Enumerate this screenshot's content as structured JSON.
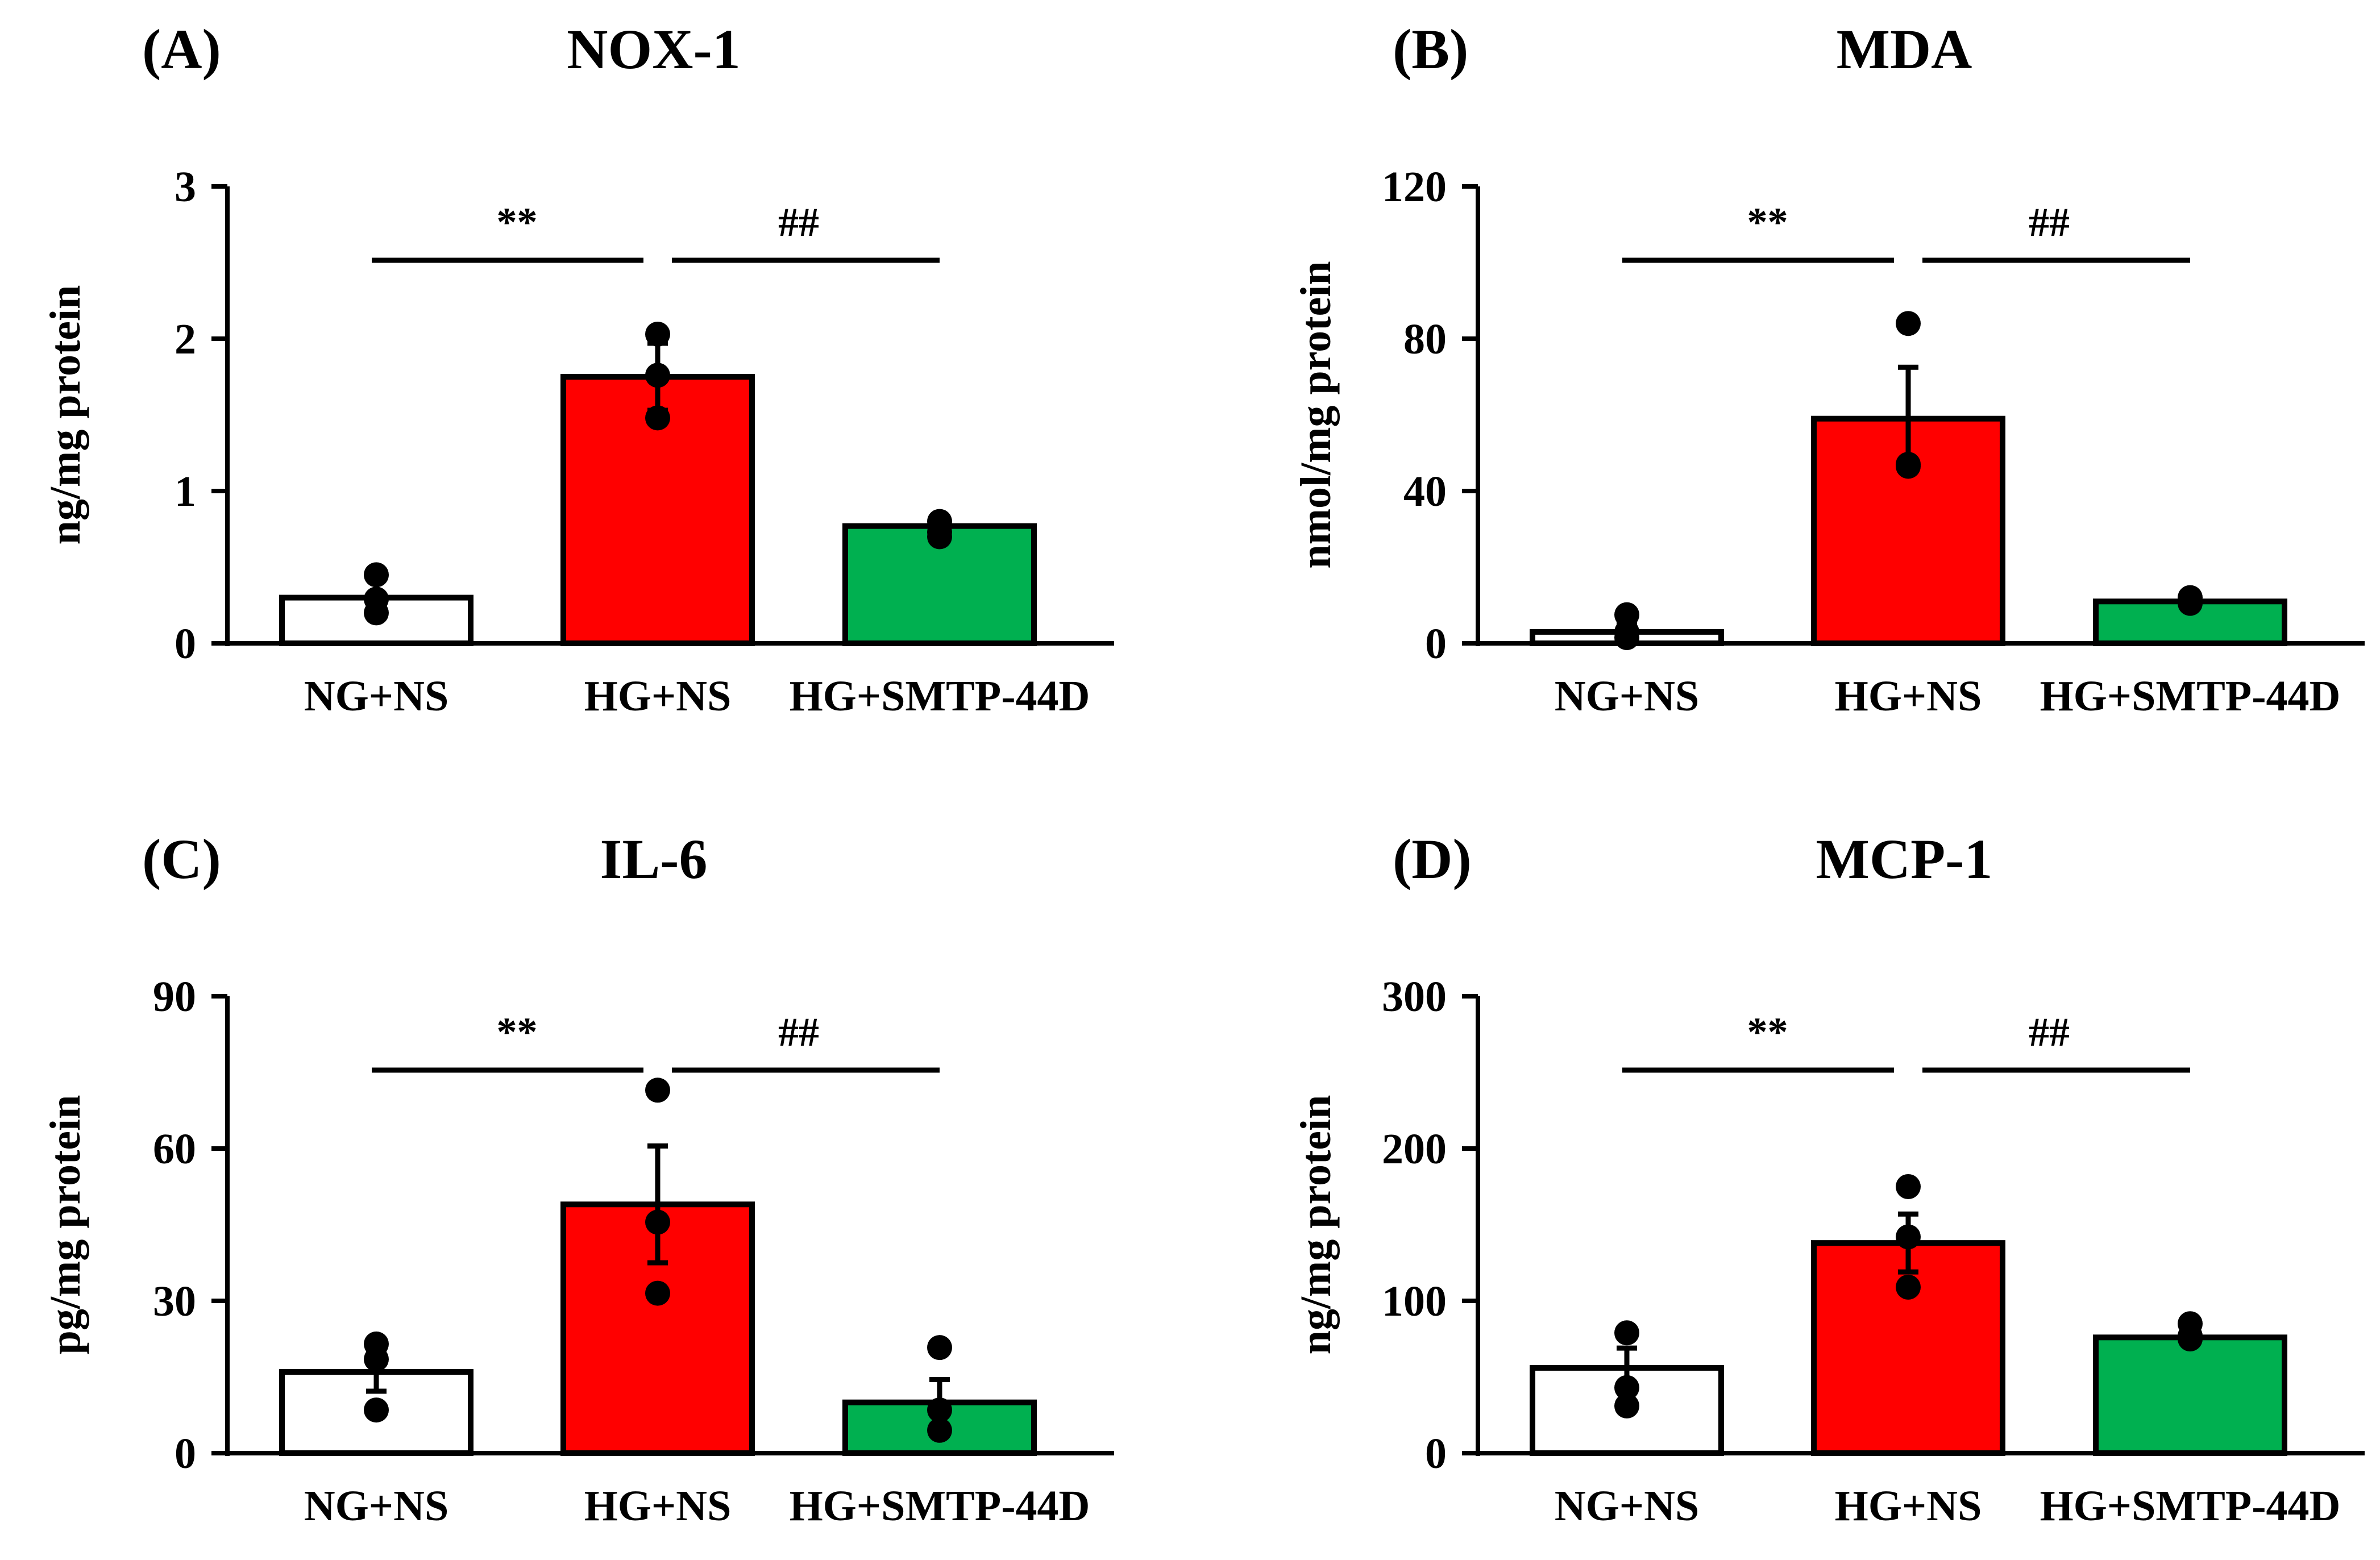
{
  "figure": {
    "description_colors": {
      "axis": "#000000",
      "NG+NS": "#ffffff",
      "HG+NS": "#ff0000",
      "HG+SMTP-44D": "#00b050"
    }
  },
  "chart_data": [
    {
      "panel_label": "(A)",
      "title": "NOX-1",
      "type": "bar",
      "ylabel": "ng/mg protein",
      "xlabel": "",
      "ylim": [
        0,
        3
      ],
      "yticks": [
        "0",
        "1",
        "2",
        "3"
      ],
      "categories": [
        "NG+NS",
        "HG+NS",
        "HG+SMTP-44D"
      ],
      "values": [
        0.3,
        1.75,
        0.77
      ],
      "errors": [
        0.0,
        0.22,
        0.0
      ],
      "points": [
        [
          0.45,
          0.29,
          0.2
        ],
        [
          2.03,
          1.76,
          1.48
        ],
        [
          0.8,
          0.73,
          0.7
        ]
      ],
      "significance": [
        {
          "from": 0,
          "to": 1,
          "label": "**"
        },
        {
          "from": 1,
          "to": 2,
          "label": "##"
        }
      ]
    },
    {
      "panel_label": "(B)",
      "title": "MDA",
      "type": "bar",
      "ylabel": "nmol/mg protein",
      "xlabel": "",
      "ylim": [
        0,
        120
      ],
      "yticks": [
        "0",
        "40",
        "80",
        "120"
      ],
      "categories": [
        "NG+NS",
        "HG+NS",
        "HG+SMTP-44D"
      ],
      "values": [
        3,
        59,
        11
      ],
      "errors": [
        2.5,
        13.5,
        0.5
      ],
      "points": [
        [
          7.5,
          3,
          1.5
        ],
        [
          84,
          47,
          46.5
        ],
        [
          12,
          11,
          10.5
        ]
      ],
      "significance": [
        {
          "from": 0,
          "to": 1,
          "label": "**"
        },
        {
          "from": 1,
          "to": 2,
          "label": "##"
        }
      ]
    },
    {
      "panel_label": "(C)",
      "title": "IL-6",
      "type": "bar",
      "ylabel": "pg/mg protein",
      "xlabel": "",
      "ylim": [
        0,
        90
      ],
      "yticks": [
        "0",
        "30",
        "60",
        "90"
      ],
      "categories": [
        "NG+NS",
        "HG+NS",
        "HG+SMTP-44D"
      ],
      "values": [
        16,
        49,
        10
      ],
      "errors": [
        3.8,
        11.5,
        4.5
      ],
      "points": [
        [
          21.5,
          18.5,
          8.5
        ],
        [
          71.5,
          45.5,
          31.5
        ],
        [
          20.8,
          8.5,
          4.5
        ]
      ],
      "significance": [
        {
          "from": 0,
          "to": 1,
          "label": "**"
        },
        {
          "from": 1,
          "to": 2,
          "label": "##"
        }
      ]
    },
    {
      "panel_label": "(D)",
      "title": "MCP-1",
      "type": "bar",
      "ylabel": "ng/mg protein",
      "xlabel": "",
      "ylim": [
        0,
        300
      ],
      "yticks": [
        "0",
        "100",
        "200",
        "300"
      ],
      "categories": [
        "NG+NS",
        "HG+NS",
        "HG+SMTP-44D"
      ],
      "values": [
        56,
        138,
        76
      ],
      "errors": [
        13,
        19,
        4
      ],
      "points": [
        [
          79,
          43,
          31
        ],
        [
          175,
          142,
          109
        ],
        [
          85,
          77,
          75
        ]
      ],
      "significance": [
        {
          "from": 0,
          "to": 1,
          "label": "**"
        },
        {
          "from": 1,
          "to": 2,
          "label": "##"
        }
      ]
    }
  ]
}
